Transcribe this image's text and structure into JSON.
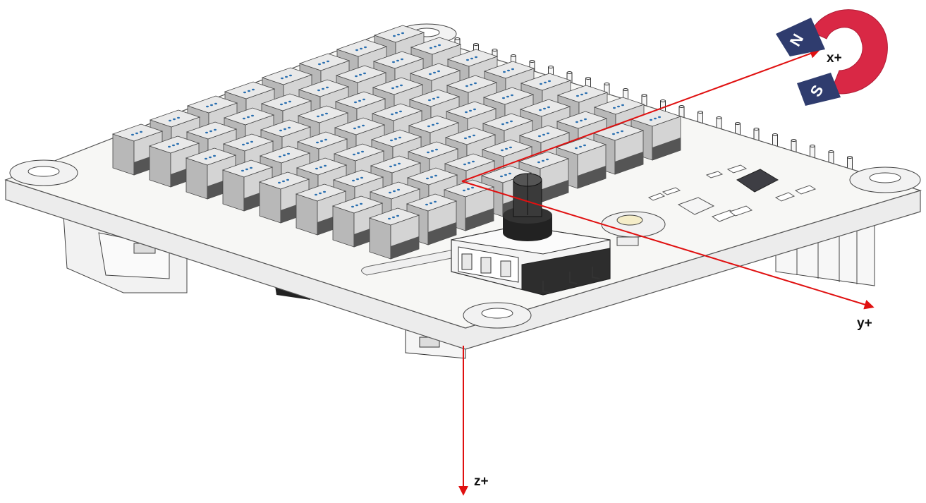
{
  "diagram": {
    "axes": {
      "x": {
        "label": "x+"
      },
      "y": {
        "label": "y+"
      },
      "z": {
        "label": "z+"
      }
    },
    "magnet": {
      "north": "N",
      "south": "S"
    },
    "colors": {
      "axis": "#e01010",
      "board": "#f4f4f2",
      "board_edge": "#cfcfcf",
      "led_top": "#e9e9e9",
      "led_body": "#b8b8b8",
      "led_dark": "#555555",
      "magnet_red": "#d92845",
      "magnet_blue": "#2f3c6e",
      "knob": "#333333"
    },
    "led_matrix": {
      "rows": 8,
      "columns": 8
    }
  }
}
